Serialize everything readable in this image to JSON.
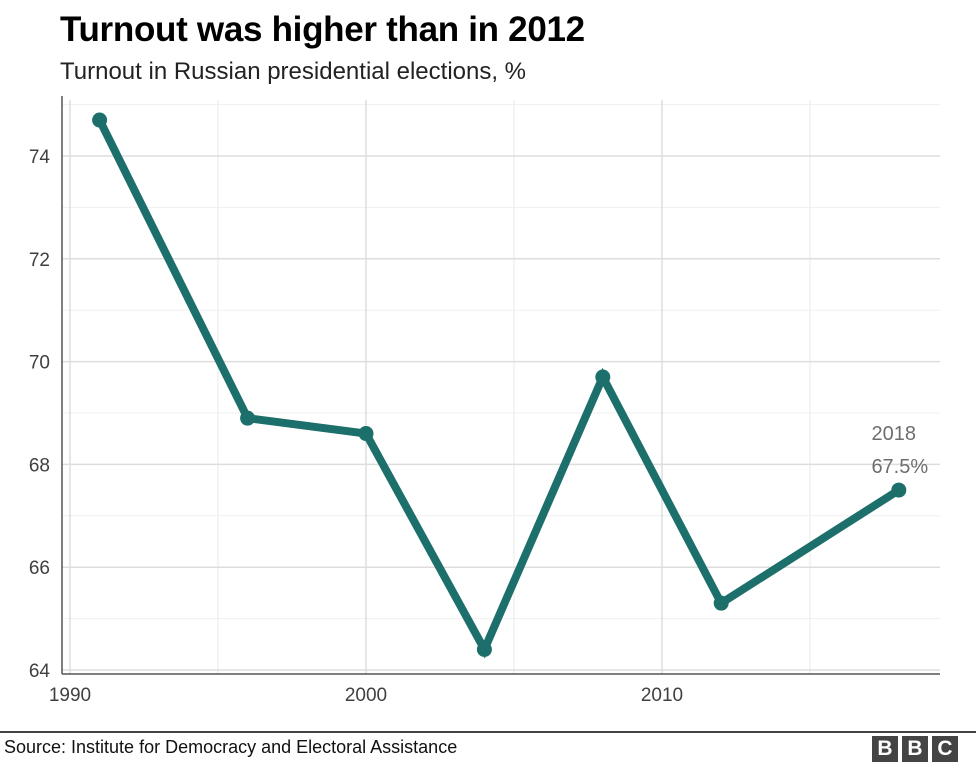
{
  "header": {
    "title": "Turnout was higher than in 2012",
    "subtitle": "Turnout in Russian presidential elections, %"
  },
  "chart_data": {
    "type": "line",
    "series": [
      {
        "color": "#1c6f6b",
        "points": [
          {
            "x": 1991,
            "y": 74.7
          },
          {
            "x": 1996,
            "y": 68.9
          },
          {
            "x": 2000,
            "y": 68.6
          },
          {
            "x": 2004,
            "y": 64.4
          },
          {
            "x": 2008,
            "y": 69.7
          },
          {
            "x": 2012,
            "y": 65.3
          },
          {
            "x": 2018,
            "y": 67.5
          }
        ]
      }
    ],
    "xlim": [
      1990,
      2019
    ],
    "ylim": [
      64,
      75
    ],
    "xticks": [
      1990,
      2000,
      2010
    ],
    "yticks": [
      64,
      66,
      68,
      70,
      72,
      74
    ],
    "grid": true,
    "annotation": {
      "x": 2018,
      "y": 67.5,
      "line1": "2018",
      "line2": "67.5%"
    }
  },
  "footer": {
    "source": "Source: Institute for Democracy and Electoral Assistance",
    "logo": [
      "B",
      "B",
      "C"
    ]
  }
}
